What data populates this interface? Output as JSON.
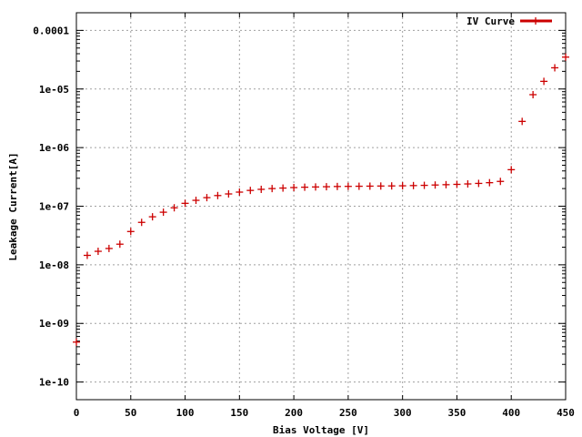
{
  "chart_data": {
    "type": "scatter",
    "xlabel": "Bias Voltage [V]",
    "ylabel": "Leakage Current[A]",
    "xlim": [
      0,
      450
    ],
    "ylim": [
      5e-11,
      0.0002
    ],
    "yscale": "log",
    "grid": true,
    "legend_position": "top-right",
    "x_ticks": [
      0,
      50,
      100,
      150,
      200,
      250,
      300,
      350,
      400,
      450
    ],
    "x_tick_labels": [
      "0",
      "50",
      "100",
      "150",
      "200",
      "250",
      "300",
      "350",
      "400",
      "450"
    ],
    "y_ticks": [
      1e-10,
      1e-09,
      1e-08,
      1e-07,
      1e-06,
      1e-05,
      0.0001
    ],
    "y_tick_labels": [
      "1e-10",
      "1e-09",
      "1e-08",
      "1e-07",
      "1e-06",
      "1e-05",
      "0.0001"
    ],
    "series": [
      {
        "name": "IV Curve",
        "color": "#cc0000",
        "marker": "plus",
        "x": [
          0,
          10,
          20,
          30,
          40,
          50,
          60,
          70,
          80,
          90,
          100,
          110,
          120,
          130,
          140,
          150,
          160,
          170,
          180,
          190,
          200,
          210,
          220,
          230,
          240,
          250,
          260,
          270,
          280,
          290,
          300,
          310,
          320,
          330,
          340,
          350,
          360,
          370,
          380,
          390,
          400,
          410,
          420,
          430,
          440,
          450
        ],
        "y": [
          4.8e-10,
          1.45e-08,
          1.7e-08,
          1.9e-08,
          2.25e-08,
          3.7e-08,
          5.3e-08,
          6.6e-08,
          7.9e-08,
          9.4e-08,
          1.12e-07,
          1.26e-07,
          1.4e-07,
          1.52e-07,
          1.62e-07,
          1.74e-07,
          1.86e-07,
          1.94e-07,
          2e-07,
          2.04e-07,
          2.08e-07,
          2.11e-07,
          2.13e-07,
          2.15e-07,
          2.17e-07,
          2.18e-07,
          2.19e-07,
          2.2e-07,
          2.21e-07,
          2.22e-07,
          2.23e-07,
          2.25e-07,
          2.27e-07,
          2.3e-07,
          2.33e-07,
          2.36e-07,
          2.4e-07,
          2.45e-07,
          2.52e-07,
          2.65e-07,
          4.2e-07,
          2.8e-06,
          8e-06,
          1.35e-05,
          2.3e-05,
          3.5e-05
        ]
      }
    ]
  }
}
